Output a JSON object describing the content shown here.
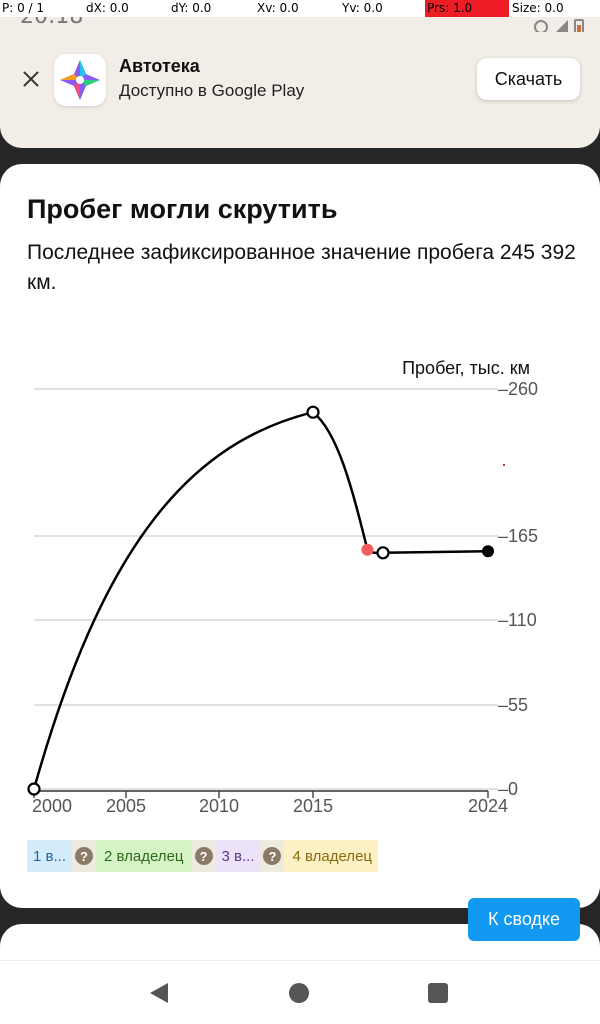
{
  "status": {
    "time": "20:18",
    "debug": {
      "p": "P: 0 / 1",
      "dx": "dX: 0.0",
      "dy": "dY: 0.0",
      "xv": "Xv: 0.0",
      "yv": "Yv: 0.0",
      "prs": "Prs: 1.0",
      "size": "Size: 0.0"
    }
  },
  "banner": {
    "app_name": "Автотека",
    "app_subtitle": "Доступно в Google Play",
    "download_label": "Скачать"
  },
  "card": {
    "title": "Пробег могли скрутить",
    "description": "Последнее зафиксированное значение пробега 245 392 км."
  },
  "chart_data": {
    "type": "line",
    "ylabel": "Пробег, тыс. км",
    "y_ticks": [
      "0",
      "55",
      "110",
      "165",
      "260"
    ],
    "y_tick_values": [
      0,
      55,
      110,
      165,
      260
    ],
    "x_ticks": [
      "2000",
      "2005",
      "2010",
      "2015",
      "2024"
    ],
    "x_tick_values": [
      2000,
      2005,
      2010,
      2015,
      2024
    ],
    "xlim": [
      2000,
      2024
    ],
    "ylim": [
      0,
      260
    ],
    "grid": true,
    "points": [
      {
        "x": 2000,
        "y": 0,
        "marker": "open"
      },
      {
        "x": 2015,
        "y": 245,
        "marker": "open"
      },
      {
        "x": 2017.8,
        "y": 156,
        "marker": "red"
      },
      {
        "x": 2018.6,
        "y": 154,
        "marker": "open"
      },
      {
        "x": 2024,
        "y": 155,
        "marker": "filled"
      }
    ],
    "colors": {
      "line": "#000000",
      "grid": "#d0d0d0",
      "suspicious": "#f25c5c",
      "axis_text": "#555555"
    }
  },
  "owners": [
    {
      "label": "1 в...",
      "color": "#d4ecfb",
      "text_color": "#1e64a0"
    },
    {
      "label": "2 владелец",
      "color": "#d6f3c6",
      "text_color": "#2c6b1e"
    },
    {
      "label": "3 в...",
      "color": "#ece3fb",
      "text_color": "#5a3b8a"
    },
    {
      "label": "4 владелец",
      "color": "#fdf0c4",
      "text_color": "#8a6a10"
    }
  ],
  "summary_button": "К сводке"
}
